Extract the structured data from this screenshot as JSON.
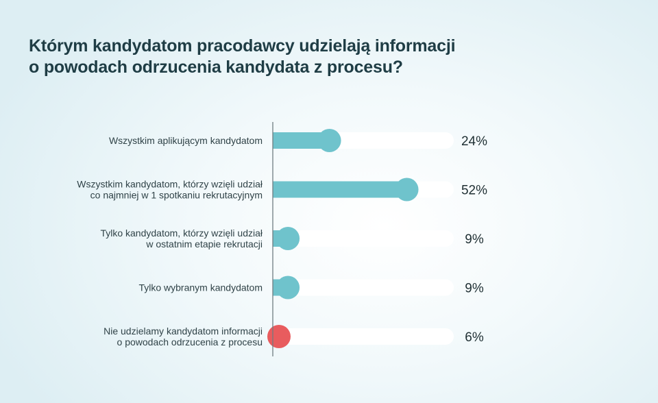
{
  "title_lines": [
    "Którym kandydatom pracodawcy udzielają informacji",
    "o powodach odrzucenia kandydata z procesu?"
  ],
  "colors": {
    "bar": "#6fc3cc",
    "bar_negative": "#e85c5e",
    "track": "#ffffff",
    "axis": "#6f7c80"
  },
  "chart_data": {
    "type": "bar",
    "orientation": "horizontal",
    "title": "Którym kandydatom pracodawcy udzielają informacji o powodach odrzucenia kandydata z procesu?",
    "categories": [
      [
        "Wszystkim aplikującym kandydatom"
      ],
      [
        "Wszystkim kandydatom, którzy wzięli udział",
        "co najmniej w 1 spotkaniu rekrutacyjnym"
      ],
      [
        "Tylko kandydatom, którzy wzięli udział",
        "w ostatnim etapie rekrutacji"
      ],
      [
        "Tylko wybranym kandydatom"
      ],
      [
        "Nie udzielamy kandydatom informacji",
        "o powodach odrzucenia z procesu"
      ]
    ],
    "values": [
      24,
      52,
      9,
      9,
      6
    ],
    "value_labels": [
      "24%",
      "52%",
      "9%",
      "9%",
      "6%"
    ],
    "highlight_index": 4,
    "xlim": [
      0,
      100
    ],
    "unit": "%"
  }
}
